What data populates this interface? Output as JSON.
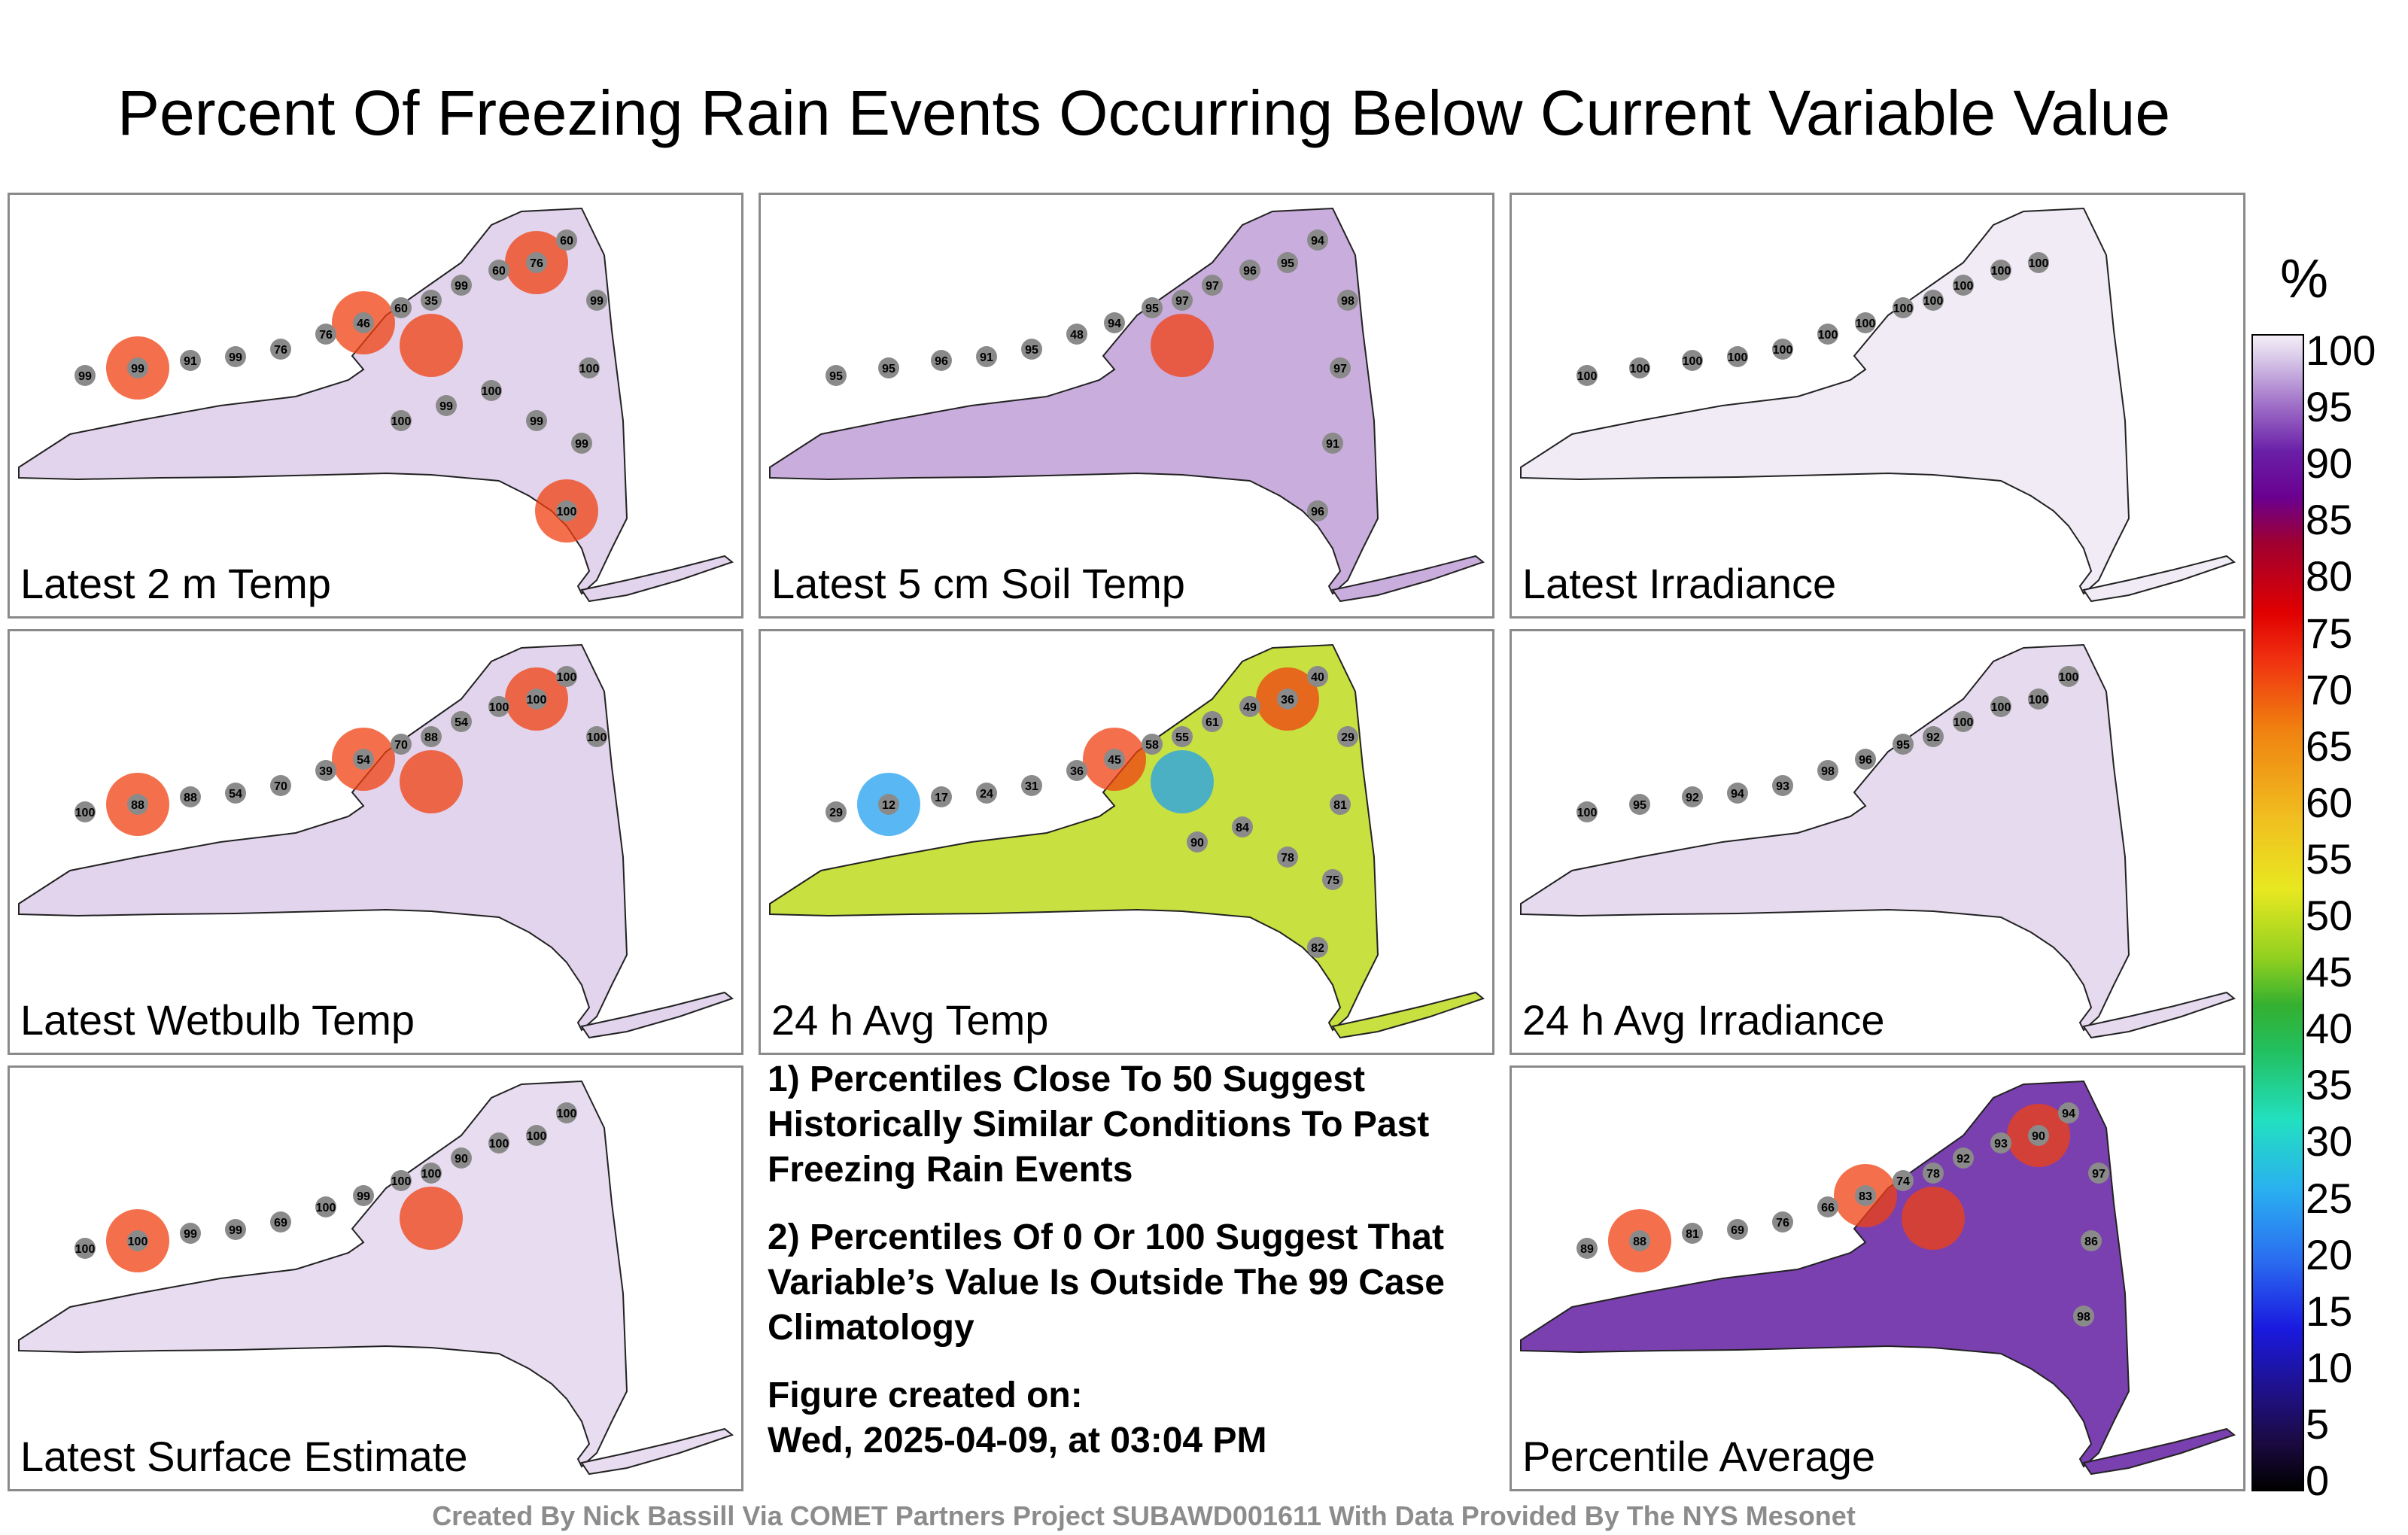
{
  "title": "Percent Of Freezing Rain Events Occurring Below Current Variable Value",
  "panels": [
    {
      "label": "Latest 2 m Temp",
      "fill": "#e2d4ec",
      "values": [
        "99",
        "99",
        "91",
        "99",
        "76",
        "76",
        "46",
        "60",
        "35",
        "99",
        "60",
        "76",
        "60",
        "99",
        "100",
        "99",
        "100",
        "99",
        "100",
        "99",
        "100"
      ],
      "hot": [
        "60",
        "35",
        "46",
        "76",
        "60"
      ]
    },
    {
      "label": "Latest 5 cm Soil Temp",
      "fill": "#c9addd",
      "values": [
        "95",
        "95",
        "96",
        "91",
        "95",
        "48",
        "94",
        "95",
        "97",
        "97",
        "96",
        "95",
        "94",
        "98",
        "97",
        "91",
        "96"
      ],
      "hot": [
        "48"
      ]
    },
    {
      "label": "Latest Irradiance",
      "fill": "#f1ebf6",
      "values": [
        "100",
        "100",
        "100",
        "100",
        "100",
        "100",
        "100",
        "100",
        "100",
        "100",
        "100",
        "100"
      ],
      "hot": []
    },
    {
      "label": "Latest Wetbulb Temp",
      "fill": "#e2d4ec",
      "values": [
        "100",
        "88",
        "88",
        "54",
        "70",
        "39",
        "54",
        "70",
        "88",
        "54",
        "100",
        "100",
        "100",
        "100"
      ],
      "hot": [
        "70",
        "54",
        "54",
        "88"
      ]
    },
    {
      "label": "24 h Avg Temp",
      "fill": "#c8e040",
      "values": [
        "29",
        "12",
        "17",
        "24",
        "31",
        "36",
        "45",
        "58",
        "55",
        "61",
        "49",
        "36",
        "40",
        "29",
        "81",
        "75",
        "82",
        "78",
        "84",
        "90"
      ],
      "hot": [
        "12",
        "17",
        "81",
        "82"
      ]
    },
    {
      "label": "24 h Avg Irradiance",
      "fill": "#e6daef",
      "values": [
        "100",
        "95",
        "92",
        "94",
        "93",
        "98",
        "96",
        "95",
        "92",
        "100",
        "100",
        "100",
        "100"
      ],
      "hot": []
    },
    {
      "label": "Latest Surface Estimate",
      "fill": "#e8dcf0",
      "values": [
        "100",
        "100",
        "99",
        "99",
        "69",
        "100",
        "99",
        "100",
        "100",
        "90",
        "100",
        "100",
        "100"
      ],
      "hot": [
        "69",
        "99"
      ]
    },
    {
      "label": "Percentile Average",
      "fill": "#7a40b0",
      "values": [
        "89",
        "88",
        "81",
        "69",
        "76",
        "66",
        "83",
        "74",
        "78",
        "92",
        "93",
        "90",
        "94",
        "97",
        "86",
        "98"
      ],
      "hot": [
        "66",
        "74",
        "76",
        "81"
      ]
    }
  ],
  "notes": {
    "line1": "1) Percentiles Close To 50 Suggest Historically Similar Conditions To Past Freezing Rain Events",
    "line2": "2) Percentiles Of 0 Or 100 Suggest That Variable’s Value Is Outside The 99 Case Climatology",
    "created_label": "Figure created on:",
    "created_value": "Wed, 2025-04-09, at 03:04 PM"
  },
  "colorbar": {
    "unit": "%",
    "ticks": [
      "100",
      "95",
      "90",
      "85",
      "80",
      "75",
      "70",
      "65",
      "60",
      "55",
      "50",
      "45",
      "40",
      "35",
      "30",
      "25",
      "20",
      "15",
      "10",
      "5",
      "0"
    ]
  },
  "credit": "Created By Nick Bassill Via COMET Partners Project SUBAWD001611 With Data Provided By The NYS Mesonet"
}
